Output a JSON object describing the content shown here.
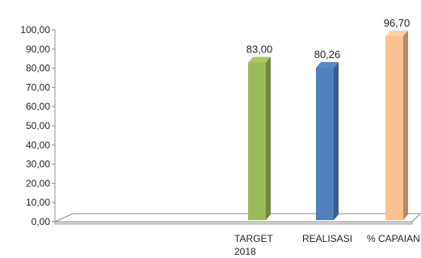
{
  "chart_data": {
    "type": "bar",
    "title": "",
    "xlabel": "",
    "ylabel": "",
    "categories": [
      "TARGET 2018",
      "REALISASI",
      "% CAPAIAN"
    ],
    "category_lines": [
      [
        "TARGET",
        "2018"
      ],
      [
        "REALISASI"
      ],
      [
        "% CAPAIAN"
      ]
    ],
    "values": [
      83.0,
      80.26,
      96.7
    ],
    "value_labels": [
      "83,00",
      "80,26",
      "96,70"
    ],
    "colors": [
      "#9BBB59",
      "#4F81BD",
      "#FAC090"
    ],
    "ylim": [
      0,
      100
    ],
    "yticks": [
      "0,00",
      "10,00",
      "20,00",
      "30,00",
      "40,00",
      "50,00",
      "60,00",
      "70,00",
      "80,00",
      "90,00",
      "100,00"
    ],
    "grid": false,
    "legend": "none",
    "style": "3d-column"
  }
}
